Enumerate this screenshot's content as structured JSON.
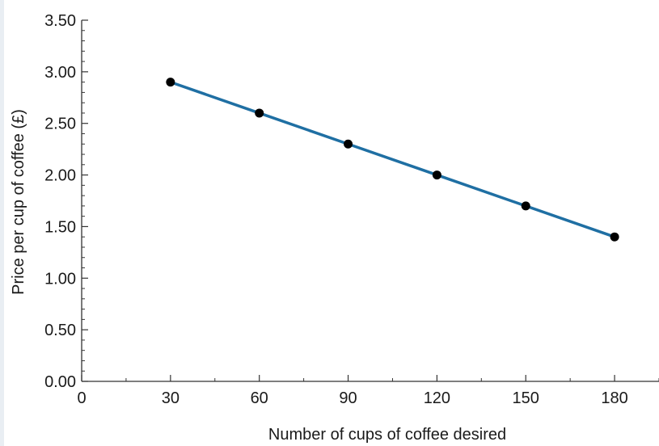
{
  "chart_data": {
    "type": "line",
    "xlabel": "Number of cups of coffee desired",
    "ylabel": "Price per cup of coffee (£)",
    "xlim": [
      0,
      195
    ],
    "ylim": [
      0,
      3.5
    ],
    "x_ticks": [
      0,
      30,
      60,
      90,
      120,
      150,
      180
    ],
    "x_tick_labels": [
      "0",
      "30",
      "60",
      "90",
      "120",
      "150",
      "180"
    ],
    "y_ticks": [
      0,
      0.5,
      1.0,
      1.5,
      2.0,
      2.5,
      3.0,
      3.5
    ],
    "y_tick_labels": [
      "0.00",
      "0.50",
      "1.00",
      "1.50",
      "2.00",
      "2.50",
      "3.00",
      "3.50"
    ],
    "grid": false,
    "series": [
      {
        "x": [
          30,
          60,
          90,
          120,
          150,
          180
        ],
        "y": [
          2.9,
          2.6,
          2.3,
          2.0,
          1.7,
          1.4
        ],
        "line_color": "#1f6fa3",
        "marker_color": "#000000"
      }
    ]
  }
}
